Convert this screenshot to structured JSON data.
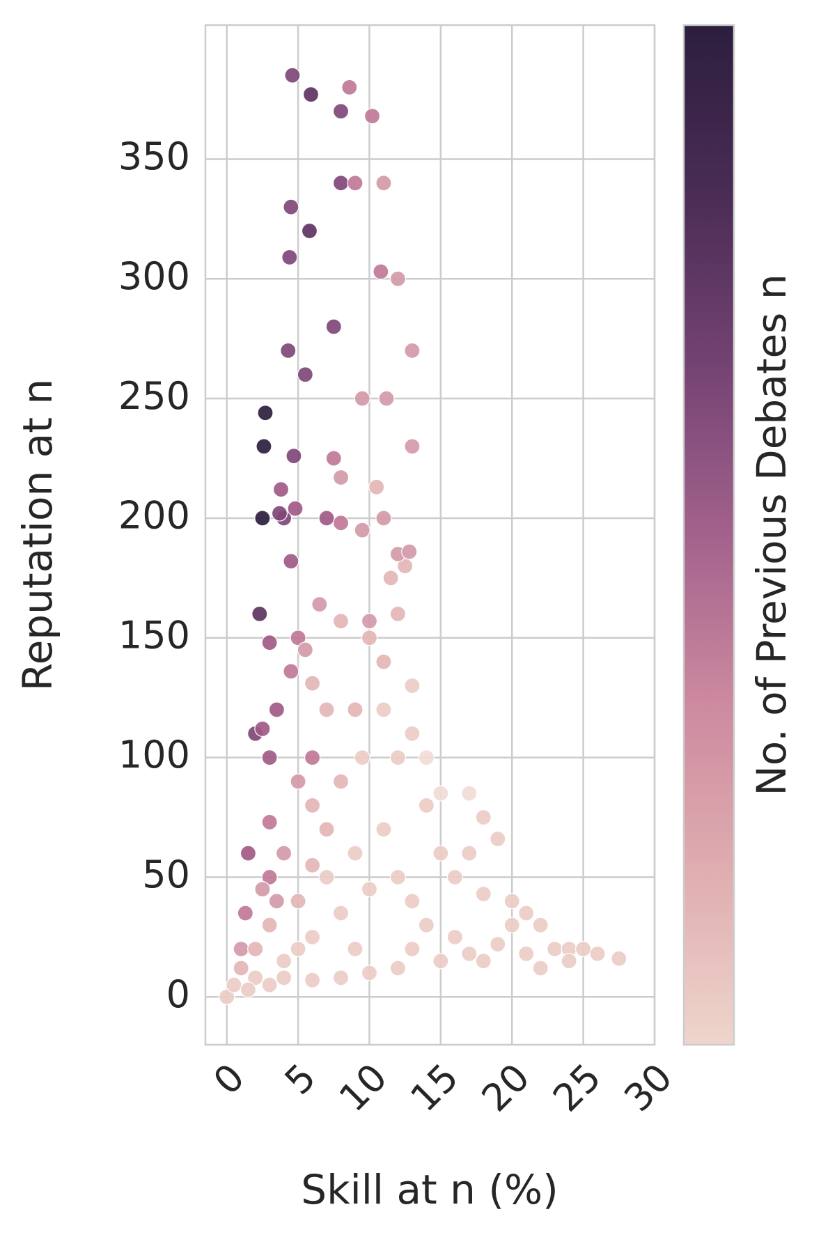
{
  "chart_data": {
    "type": "scatter",
    "x_label": "Skill at n (%)",
    "y_label": "Reputation at n",
    "colorbar": {
      "label": "No. of Previous Debates n",
      "colors": [
        "#eed5cc",
        "#e0aeb0",
        "#cd8aa0",
        "#a3628c",
        "#744373",
        "#4a2c55",
        "#2d1e3e"
      ]
    },
    "xlim": [
      -1.5,
      30
    ],
    "xticks": [
      0,
      5,
      10,
      15,
      20,
      25,
      30
    ],
    "ylim": [
      -20,
      406
    ],
    "yticks": [
      0,
      50,
      100,
      150,
      200,
      250,
      300,
      350
    ],
    "grid": true,
    "x": [
      1,
      1.5,
      2,
      2.3,
      2.5,
      2.6,
      2.7,
      3,
      3.5,
      4,
      4.3,
      4.5,
      4.6,
      5,
      5.5,
      5.8,
      5.9,
      6,
      7,
      7.5,
      8,
      8,
      8.6,
      9,
      9.5,
      10.2,
      11,
      12,
      13,
      13,
      12.5,
      11,
      10.8,
      11.2,
      11,
      10,
      12,
      4.4,
      4.7,
      4.8,
      3.8,
      3.7,
      4.5,
      3,
      3,
      2.5,
      1.3,
      3,
      4.5,
      7.5,
      8,
      8,
      9.5,
      10,
      10.5,
      12.8,
      6.5,
      5.5,
      6,
      8,
      7,
      5,
      6,
      8,
      9.5,
      11,
      12,
      13,
      14,
      15,
      17,
      18,
      19,
      17,
      16,
      18,
      20,
      21,
      22,
      23,
      24,
      25,
      26,
      27.5,
      22,
      18,
      15,
      12,
      10,
      8,
      6,
      4,
      2,
      0,
      0.5,
      1,
      2,
      3,
      5,
      7,
      9,
      11,
      13,
      14,
      16,
      19,
      20,
      12,
      10,
      8,
      6,
      4,
      3,
      1.5,
      5,
      9,
      13,
      17,
      21,
      24,
      15,
      14,
      13,
      12,
      11.5,
      9,
      7,
      6,
      4,
      2.5,
      3.5
    ],
    "y": [
      20,
      60,
      110,
      160,
      200,
      230,
      244,
      50,
      120,
      200,
      270,
      330,
      385,
      150,
      260,
      320,
      377,
      100,
      200,
      280,
      340,
      370,
      380,
      340,
      250,
      368,
      340,
      300,
      270,
      230,
      180,
      140,
      303,
      250,
      200,
      150,
      185,
      309,
      226,
      204,
      212,
      202,
      182,
      148,
      100,
      112,
      35,
      73,
      136,
      225,
      198,
      217,
      195,
      157,
      213,
      186,
      164,
      145,
      131,
      157,
      120,
      90,
      80,
      90,
      100,
      120,
      100,
      110,
      80,
      85,
      85,
      75,
      66,
      60,
      50,
      43,
      40,
      35,
      30,
      20,
      20,
      20,
      18,
      16,
      12,
      15,
      15,
      12,
      10,
      8,
      7,
      8,
      8,
      0,
      5,
      12,
      20,
      30,
      40,
      50,
      60,
      70,
      40,
      30,
      25,
      22,
      30,
      50,
      45,
      35,
      25,
      15,
      5,
      3,
      20,
      20,
      20,
      18,
      18,
      15,
      60,
      100,
      130,
      160,
      175,
      120,
      70,
      55,
      60,
      45,
      40
    ],
    "colors": [
      "#d49aa8",
      "#a05a85",
      "#7f4777",
      "#5e3462",
      "#2d1e3e",
      "#2d1e3e",
      "#2d1e3e",
      "#c07897",
      "#a05a85",
      "#7f4777",
      "#7f4777",
      "#7f4777",
      "#7f4777",
      "#c07897",
      "#7f4777",
      "#5e3462",
      "#5e3462",
      "#c07897",
      "#a05a85",
      "#7f4777",
      "#7f4777",
      "#7f4777",
      "#c07897",
      "#c07897",
      "#d49aa8",
      "#c07897",
      "#d49aa8",
      "#d49aa8",
      "#d49aa8",
      "#d49aa8",
      "#e3b5b6",
      "#e3b5b6",
      "#c07897",
      "#d49aa8",
      "#d49aa8",
      "#e3b5b6",
      "#d49aa8",
      "#7f4777",
      "#7f4777",
      "#a05a85",
      "#a05a85",
      "#7f4777",
      "#a05a85",
      "#a05a85",
      "#a05a85",
      "#a05a85",
      "#c07897",
      "#c07897",
      "#c07897",
      "#c07897",
      "#c07897",
      "#d49aa8",
      "#d49aa8",
      "#d49aa8",
      "#e3b5b6",
      "#d49aa8",
      "#d49aa8",
      "#d49aa8",
      "#e3b5b6",
      "#e3b5b6",
      "#e3b5b6",
      "#d49aa8",
      "#e3b5b6",
      "#e3b5b6",
      "#ecccc6",
      "#ecccc6",
      "#ecccc6",
      "#ecccc6",
      "#ecccc6",
      "#f2dcd7",
      "#f2dcd7",
      "#ecccc6",
      "#ecccc6",
      "#ecccc6",
      "#ecccc6",
      "#ecccc6",
      "#ecccc6",
      "#ecccc6",
      "#ecccc6",
      "#ecccc6",
      "#ecccc6",
      "#ecccc6",
      "#ecccc6",
      "#ecccc6",
      "#ecccc6",
      "#ecccc6",
      "#ecccc6",
      "#ecccc6",
      "#ecccc6",
      "#ecccc6",
      "#ecccc6",
      "#ecccc6",
      "#ecccc6",
      "#ecccc6",
      "#ecccc6",
      "#e3b5b6",
      "#e3b5b6",
      "#e3b5b6",
      "#e3b5b6",
      "#ecccc6",
      "#ecccc6",
      "#ecccc6",
      "#ecccc6",
      "#ecccc6",
      "#ecccc6",
      "#ecccc6",
      "#ecccc6",
      "#ecccc6",
      "#ecccc6",
      "#ecccc6",
      "#ecccc6",
      "#ecccc6",
      "#ecccc6",
      "#ecccc6",
      "#ecccc6",
      "#ecccc6",
      "#ecccc6",
      "#ecccc6",
      "#ecccc6",
      "#ecccc6",
      "#ecccc6",
      "#f2dcd7",
      "#ecccc6",
      "#e3b5b6",
      "#e3b5b6",
      "#e3b5b6",
      "#e3b5b6",
      "#e3b5b6",
      "#d49aa8",
      "#d49aa8",
      "#d49aa8"
    ]
  }
}
